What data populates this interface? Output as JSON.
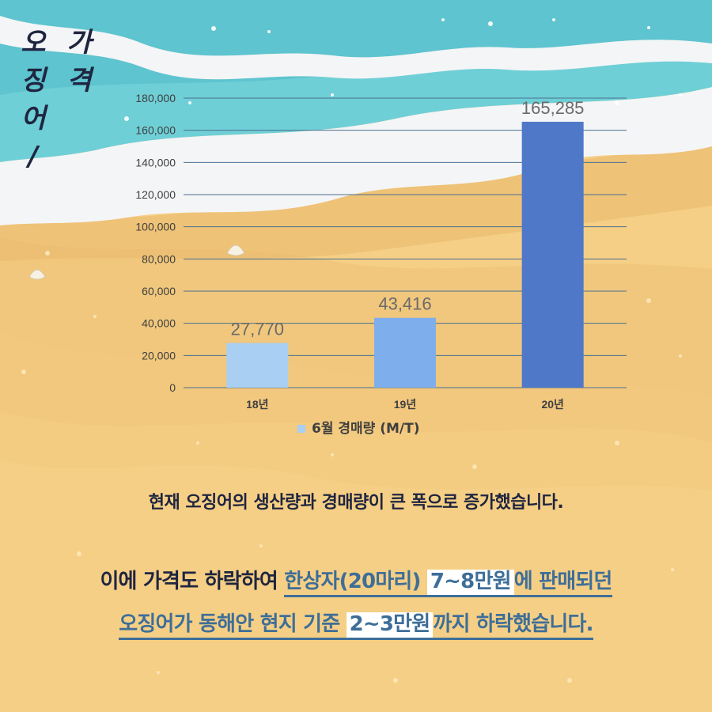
{
  "title_columns": [
    {
      "chars": [
        "가",
        "격"
      ]
    },
    {
      "chars": [
        "오",
        "징",
        "어",
        "/"
      ]
    }
  ],
  "chart_data": {
    "type": "bar",
    "categories": [
      "18년",
      "19년",
      "20년"
    ],
    "series": [
      {
        "name": "6월 경매량 (M/T)",
        "values": [
          27770,
          43416,
          165285
        ]
      }
    ],
    "data_labels": [
      "27,770",
      "43,416",
      "165,285"
    ],
    "bar_colors": [
      "#a9cff2",
      "#7eaeec",
      "#4f78c8"
    ],
    "ylim": [
      0,
      180000
    ],
    "yticks": [
      0,
      20000,
      40000,
      60000,
      80000,
      100000,
      120000,
      140000,
      160000,
      180000
    ],
    "ytick_labels": [
      "0",
      "20,000",
      "40,000",
      "60,000",
      "80,000",
      "100,000",
      "120,000",
      "140,000",
      "160,000",
      "180,000"
    ],
    "grid": true,
    "grid_color": "#4a7090",
    "legend": {
      "position": "bottom",
      "marker_color": "#a9cff2"
    }
  },
  "caption_1": "현재 오징어의 생산량과 경매량이 큰 폭으로 증가했습니다.",
  "caption_2": {
    "line_1": [
      {
        "text": "이에 가격도 하락하여 ",
        "style": "plain"
      },
      {
        "text": "한상자(20마리) ",
        "style": "u"
      },
      {
        "text": "7~8만원",
        "style": "hl"
      },
      {
        "text": "에 판매되던",
        "style": "u"
      }
    ],
    "line_2": [
      {
        "text": "오징어가 동해안 현지 기준  ",
        "style": "u"
      },
      {
        "text": "2~3만원",
        "style": "hl"
      },
      {
        "text": "까지 하락했습니다.",
        "style": "u"
      }
    ]
  }
}
